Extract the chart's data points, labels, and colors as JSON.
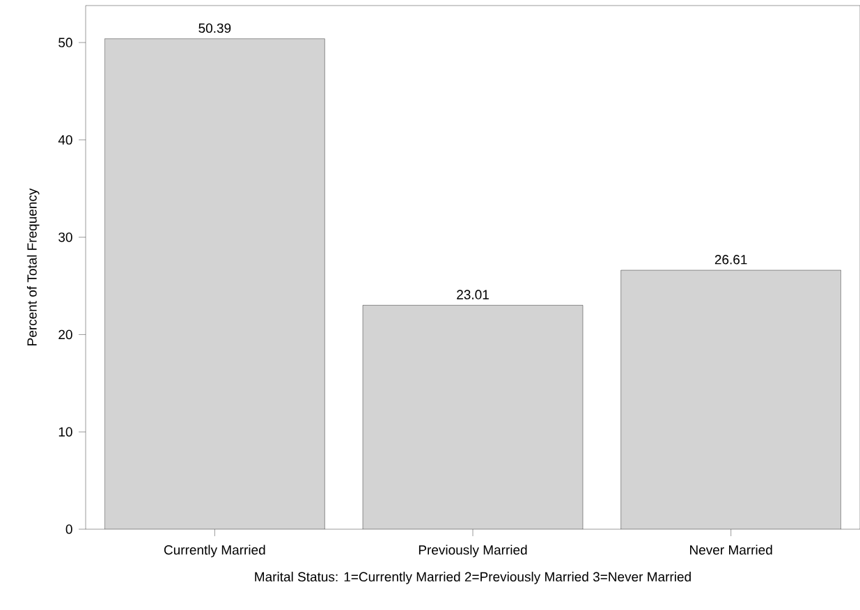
{
  "chart_data": {
    "type": "bar",
    "xlabel": "Marital Status: 1=Currently Married 2=Previously Married 3=Never Married",
    "ylabel": "Percent of Total Frequency",
    "categories": [
      "Currently Married",
      "Previously Married",
      "Never Married"
    ],
    "values": [
      50.39,
      23.01,
      26.61
    ],
    "color": "#d3d3d3",
    "ylim": [
      0,
      53.8
    ],
    "yticks": [
      0,
      10,
      20,
      30,
      40,
      50
    ],
    "data_labels": true
  }
}
